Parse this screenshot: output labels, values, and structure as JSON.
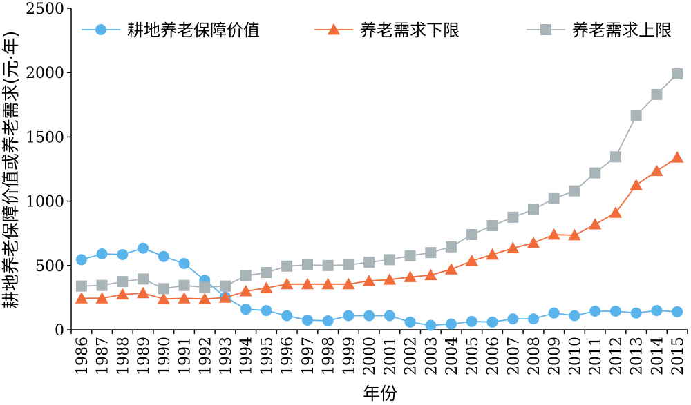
{
  "chart_data": {
    "type": "line",
    "xlabel": "年份",
    "ylabel": "耕地养老保障价值或养老需求(元·年)",
    "ylim": [
      0,
      2500
    ],
    "yticks": [
      0,
      500,
      1000,
      1500,
      2000,
      2500
    ],
    "grid": false,
    "legend_position": "top",
    "x": [
      "1986",
      "1987",
      "1988",
      "1989",
      "1990",
      "1991",
      "1992",
      "1993",
      "1994",
      "1995",
      "1996",
      "1997",
      "1998",
      "1999",
      "2000",
      "2001",
      "2002",
      "2003",
      "2004",
      "2005",
      "2006",
      "2007",
      "2008",
      "2009",
      "2010",
      "2011",
      "2012",
      "2013",
      "2014",
      "2015"
    ],
    "series": [
      {
        "name": "耕地养老保障价值",
        "color": "#5ab4ec",
        "marker": "circle",
        "values": [
          545,
          590,
          585,
          635,
          570,
          515,
          385,
          255,
          160,
          150,
          110,
          75,
          70,
          110,
          110,
          110,
          60,
          35,
          45,
          65,
          60,
          85,
          85,
          130,
          110,
          145,
          145,
          130,
          150,
          140
        ]
      },
      {
        "name": "养老需求下限",
        "color": "#f26b3a",
        "marker": "triangle",
        "values": [
          245,
          245,
          275,
          285,
          240,
          245,
          240,
          250,
          300,
          325,
          355,
          355,
          355,
          355,
          380,
          390,
          410,
          425,
          470,
          535,
          585,
          635,
          675,
          740,
          735,
          820,
          910,
          1125,
          1235,
          1340
        ]
      },
      {
        "name": "养老需求上限",
        "color": "#a9b4b8",
        "marker": "square",
        "values": [
          340,
          345,
          375,
          395,
          320,
          345,
          330,
          340,
          420,
          445,
          495,
          505,
          500,
          505,
          525,
          545,
          575,
          600,
          645,
          740,
          810,
          875,
          935,
          1020,
          1080,
          1220,
          1345,
          1665,
          1830,
          1990
        ]
      }
    ]
  }
}
